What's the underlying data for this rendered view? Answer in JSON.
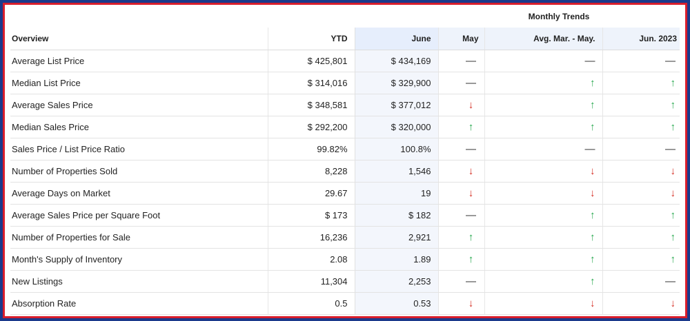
{
  "header": {
    "trends_title": "Monthly Trends",
    "overview": "Overview",
    "ytd": "YTD",
    "june": "June",
    "may": "May",
    "avg": "Avg. Mar. - May.",
    "jun2023": "Jun. 2023"
  },
  "rows": [
    {
      "label": "Average List Price",
      "ytd": "$ 425,801",
      "june": "$ 434,169",
      "may": "flat",
      "avg": "flat",
      "jun2023": "flat"
    },
    {
      "label": "Median List Price",
      "ytd": "$ 314,016",
      "june": "$ 329,900",
      "may": "flat",
      "avg": "up",
      "jun2023": "up"
    },
    {
      "label": "Average Sales Price",
      "ytd": "$ 348,581",
      "june": "$ 377,012",
      "may": "down",
      "avg": "up",
      "jun2023": "up"
    },
    {
      "label": "Median Sales Price",
      "ytd": "$ 292,200",
      "june": "$ 320,000",
      "may": "up",
      "avg": "up",
      "jun2023": "up"
    },
    {
      "label": "Sales Price / List Price Ratio",
      "ytd": "99.82%",
      "june": "100.8%",
      "may": "flat",
      "avg": "flat",
      "jun2023": "flat"
    },
    {
      "label": "Number of Properties Sold",
      "ytd": "8,228",
      "june": "1,546",
      "may": "down",
      "avg": "down",
      "jun2023": "down"
    },
    {
      "label": "Average Days on Market",
      "ytd": "29.67",
      "june": "19",
      "may": "down",
      "avg": "down",
      "jun2023": "down"
    },
    {
      "label": "Average Sales Price per Square Foot",
      "ytd": "$ 173",
      "june": "$ 182",
      "may": "flat",
      "avg": "up",
      "jun2023": "up"
    },
    {
      "label": "Number of Properties for Sale",
      "ytd": "16,236",
      "june": "2,921",
      "may": "up",
      "avg": "up",
      "jun2023": "up"
    },
    {
      "label": "Month's Supply of Inventory",
      "ytd": "2.08",
      "june": "1.89",
      "may": "up",
      "avg": "up",
      "jun2023": "up"
    },
    {
      "label": "New Listings",
      "ytd": "11,304",
      "june": "2,253",
      "may": "flat",
      "avg": "up",
      "jun2023": "flat"
    },
    {
      "label": "Absorption Rate",
      "ytd": "0.5",
      "june": "0.53",
      "may": "down",
      "avg": "down",
      "jun2023": "down"
    }
  ],
  "icons": {
    "up": "arrow-up-icon",
    "down": "arrow-down-icon",
    "flat": "dash-icon"
  },
  "colors": {
    "up": "#22a64a",
    "down": "#d42a1f",
    "flat": "#333333",
    "border": "#d81e2c",
    "frame": "#1b3a8c"
  }
}
